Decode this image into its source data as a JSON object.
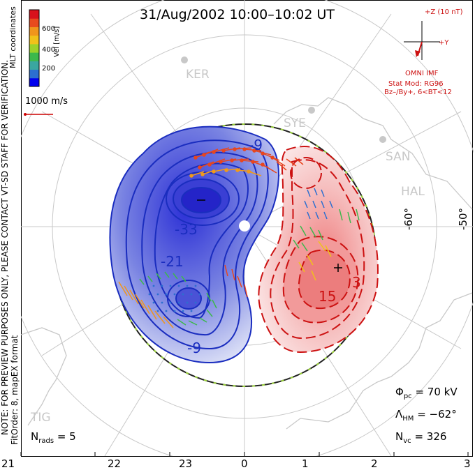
{
  "title": "31/Aug/2002 10:00–10:02 UT",
  "coordinates": "MLT coordinates",
  "colorbar": {
    "label": "Vel [m/s]",
    "ticks": [
      "600",
      "400",
      "200"
    ],
    "colors": [
      "#0000ee",
      "#2c6fd0",
      "#3aa7a0",
      "#3cb84c",
      "#9cd22a",
      "#f0c21a",
      "#f0951c",
      "#e84a1e",
      "#d8121c"
    ]
  },
  "reference_vector": {
    "label": "1000 m/s",
    "color": "#cc0000"
  },
  "imf": {
    "axis_z": "+Z (10 nT)",
    "axis_y": "+Y",
    "source": "OMNI IMF",
    "model_line1": "Stat Mod: RG96",
    "model_line2": "Bz–/By+, 6<BT<12"
  },
  "note": "NOTE: FOR PREVIEW PURPOSES ONLY, PLEASE CONTACT VT-SD STAFF FOR VERIFICATION.",
  "fit_order": "FitOrder: 8, mapEX format",
  "stations": [
    "KER",
    "SYE",
    "SAN",
    "HAL",
    "TIG"
  ],
  "latitude_labels": [
    "-60°",
    "-50°"
  ],
  "contour_labels": {
    "negative": [
      "-9",
      "-33",
      "-21",
      "-9",
      "-9"
    ],
    "positive": [
      "15",
      "3",
      "-3"
    ]
  },
  "stats": {
    "phi_pc_label": "Φ",
    "phi_pc_sub": "pc",
    "phi_pc_value": "=  70 kV",
    "lambda_hm_label": "Λ",
    "lambda_hm_sub": "HM",
    "lambda_hm_value": "=  −62°",
    "n_vc_label": "N",
    "n_vc_sub": "vc",
    "n_vc_value": "=  326",
    "n_rads_label": "N",
    "n_rads_sub": "rads",
    "n_rads_value": "=  5"
  },
  "mlt_axis": [
    "21",
    "22",
    "23",
    "0",
    "1",
    "2",
    "3"
  ],
  "colors": {
    "negative_contour": "#1a2dbf",
    "positive_contour": "#cc1111",
    "negative_fill": "#5a63d8",
    "positive_fill": "#f3a6a6",
    "grid": "#c8c8c8",
    "coast": "#c8c8c8",
    "heppner_maynard": "#222222",
    "hm_dash": "#9ad23a"
  }
}
